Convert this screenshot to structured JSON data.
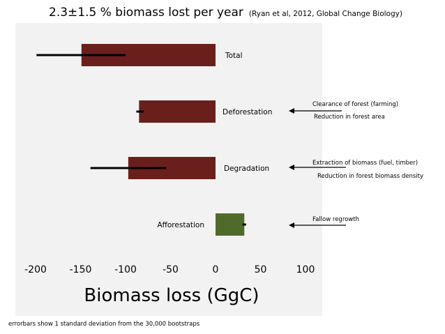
{
  "title": {
    "main": "2.3±1.5 % biomass lost per year",
    "citation": "(Ryan et al, 2012, Global Change Biology)"
  },
  "footnote": "errorbars show 1 standard deviation from the 30,000 bootstraps",
  "annotations": [
    {
      "name": "deforestation",
      "lines": [
        "Clearance of forest (farming)",
        "Reduction in forest area"
      ]
    },
    {
      "name": "degradation",
      "lines": [
        "Extraction of biomass (fuel, timber)",
        "Reduction in forest biomass density"
      ]
    },
    {
      "name": "afforestation",
      "lines": [
        "Fallow regrowth"
      ]
    }
  ],
  "colors": {
    "loss": "#6b1f1c",
    "gain": "#4f6b2a",
    "plot_bg": "#f2f2f2"
  },
  "chart_data": {
    "type": "bar",
    "orientation": "horizontal",
    "xlabel": "Biomass loss (GgC)",
    "xlim": [
      -200,
      100
    ],
    "xticks": [
      -200,
      -150,
      -100,
      -50,
      0,
      50,
      100
    ],
    "categories": [
      "Total",
      "Deforestation",
      "Degradation",
      "Afforestation"
    ],
    "values": [
      -149,
      -85,
      -97,
      32
    ],
    "error": [
      [
        -199,
        -100
      ],
      [
        -88,
        -80
      ],
      [
        -139,
        -55
      ],
      [
        30,
        34
      ]
    ]
  }
}
